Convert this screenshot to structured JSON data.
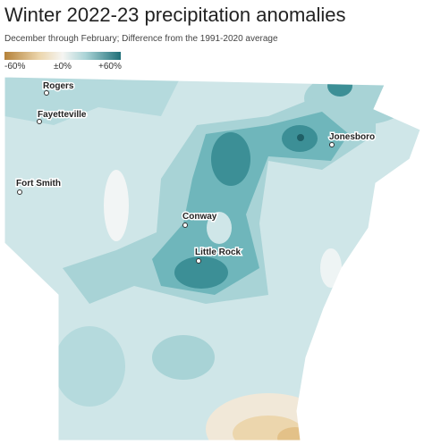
{
  "header": {
    "title": "Winter 2022-23 precipitation anomalies",
    "subtitle": "December through February; Difference from the 1991-2020 average"
  },
  "legend": {
    "labels": [
      "-60%",
      "±0%",
      "+60%"
    ]
  },
  "cities": [
    {
      "label": "Rogers"
    },
    {
      "label": "Fayetteville"
    },
    {
      "label": "Fort Smith"
    },
    {
      "label": "Conway"
    },
    {
      "label": "Little Rock"
    },
    {
      "label": "Jonesboro"
    }
  ]
}
